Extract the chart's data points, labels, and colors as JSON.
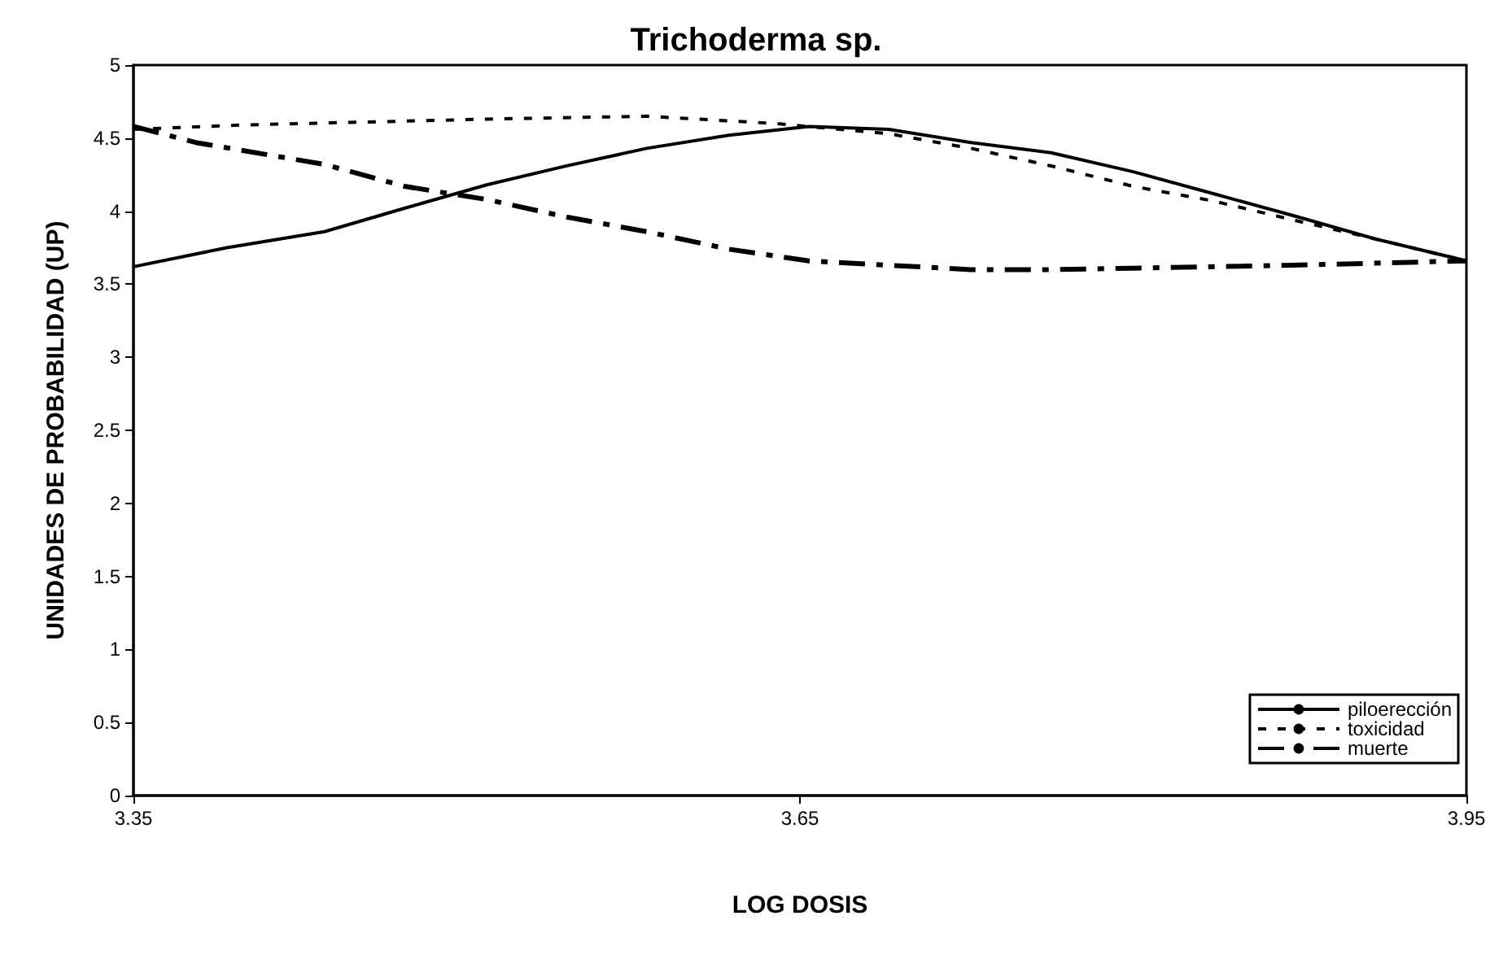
{
  "chart_data": {
    "type": "line",
    "title": "Trichoderma sp.",
    "xlabel": "LOG DOSIS",
    "ylabel": "UNIDADES DE PROBABILIDAD (UP)",
    "xlim": [
      3.35,
      3.95
    ],
    "xticks": [
      3.35,
      3.65,
      3.95
    ],
    "ylim": [
      0,
      5
    ],
    "yticks": [
      0,
      0.5,
      1,
      1.5,
      2,
      2.5,
      3,
      3.5,
      4,
      4.5,
      5
    ],
    "grid": false,
    "legend": "bottom right",
    "marker": "none",
    "series": [
      {
        "name": "piloerección",
        "color": "#000000",
        "line_style": "solid",
        "x": [
          3.35,
          3.392,
          3.436,
          3.472,
          3.509,
          3.545,
          3.581,
          3.618,
          3.654,
          3.69,
          3.727,
          3.763,
          3.8,
          3.836,
          3.872,
          3.909,
          3.95
        ],
        "values": [
          3.62,
          3.75,
          3.86,
          4.02,
          4.18,
          4.31,
          4.43,
          4.52,
          4.58,
          4.56,
          4.47,
          4.4,
          4.27,
          4.12,
          3.97,
          3.81,
          3.66
        ]
      },
      {
        "name": "toxicidad",
        "color": "#000000",
        "line_style": "dotted",
        "x": [
          3.35,
          3.399,
          3.509,
          3.581,
          3.639,
          3.69,
          3.727,
          3.763,
          3.8,
          3.836,
          3.872,
          3.909,
          3.95
        ],
        "values": [
          4.56,
          4.59,
          4.63,
          4.65,
          4.6,
          4.53,
          4.43,
          4.31,
          4.17,
          4.07,
          3.94,
          3.81,
          3.66
        ]
      },
      {
        "name": "muerte",
        "color": "#000000",
        "line_style": "dashed",
        "x": [
          3.35,
          3.378,
          3.436,
          3.472,
          3.509,
          3.545,
          3.581,
          3.618,
          3.654,
          3.69,
          3.727,
          3.763,
          3.8,
          3.872,
          3.95
        ],
        "values": [
          4.58,
          4.47,
          4.32,
          4.17,
          4.08,
          3.96,
          3.86,
          3.74,
          3.66,
          3.63,
          3.6,
          3.6,
          3.61,
          3.63,
          3.66
        ]
      }
    ]
  }
}
